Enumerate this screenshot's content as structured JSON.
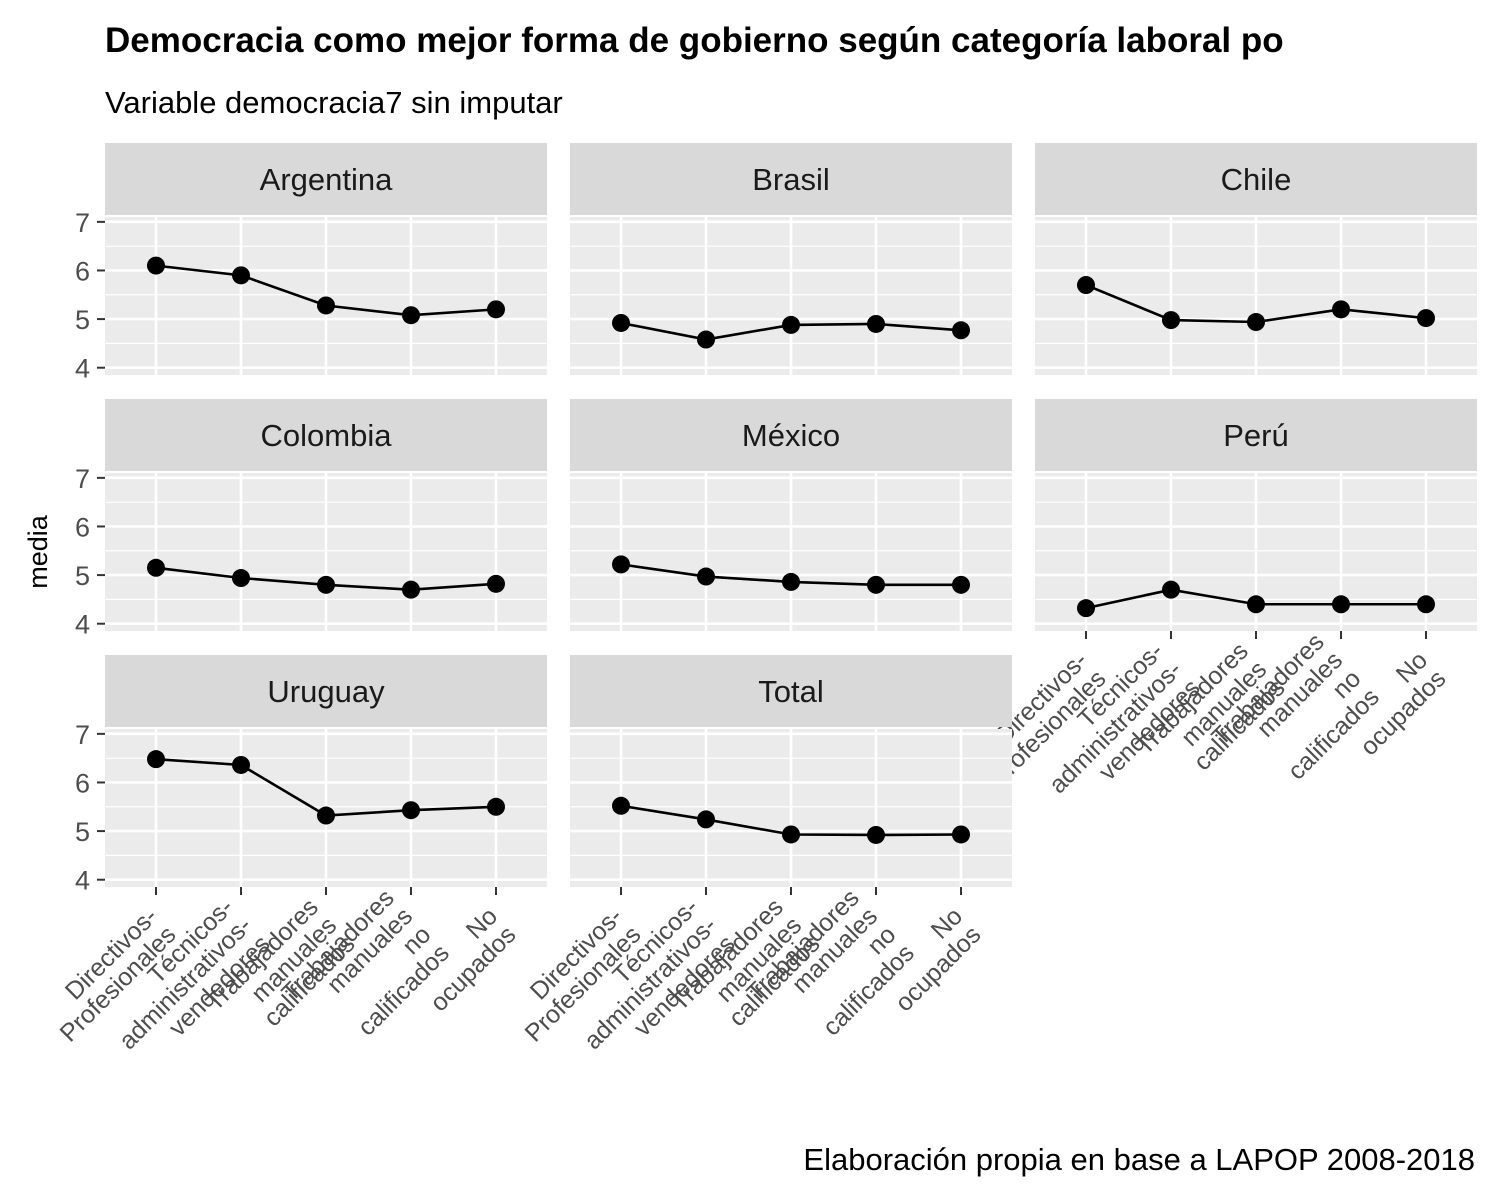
{
  "chart_data": {
    "type": "line",
    "title": "Democracia como mejor forma de gobierno según categoría laboral po",
    "subtitle": "Variable democracia7 sin imputar",
    "ylabel": "media",
    "xlabel": "",
    "caption": "Elaboración propia en base a LAPOP 2008-2018",
    "ylim": [
      3.85,
      7.1
    ],
    "yticks": [
      4,
      5,
      6,
      7
    ],
    "grid": true,
    "categories": [
      "Directivos-\nProfesionales",
      "Técnicos-\nadministrativos-\nvendedores",
      "Trabajadores\nmanuales\ncalificados",
      "Trabajadores\nmanuales\nno\ncalificados",
      "No\nocupados"
    ],
    "facets": [
      {
        "name": "Argentina",
        "values": [
          6.1,
          5.9,
          5.28,
          5.08,
          5.2
        ]
      },
      {
        "name": "Brasil",
        "values": [
          4.92,
          4.58,
          4.88,
          4.9,
          4.77
        ]
      },
      {
        "name": "Chile",
        "values": [
          5.7,
          4.98,
          4.94,
          5.2,
          5.02
        ]
      },
      {
        "name": "Colombia",
        "values": [
          5.15,
          4.94,
          4.8,
          4.7,
          4.82
        ]
      },
      {
        "name": "México",
        "values": [
          5.22,
          4.97,
          4.86,
          4.8,
          4.8
        ]
      },
      {
        "name": "Perú",
        "values": [
          4.32,
          4.7,
          4.4,
          4.4,
          4.4
        ]
      },
      {
        "name": "Uruguay",
        "values": [
          6.48,
          6.36,
          5.32,
          5.43,
          5.5
        ]
      },
      {
        "name": "Total",
        "values": [
          5.52,
          5.24,
          4.93,
          4.92,
          4.93
        ]
      }
    ],
    "colors": {
      "panel_bg": "#ebebeb",
      "strip_bg": "#d9d9d9",
      "grid_major": "#ffffff",
      "line": "#000000",
      "point": "#000000"
    }
  }
}
